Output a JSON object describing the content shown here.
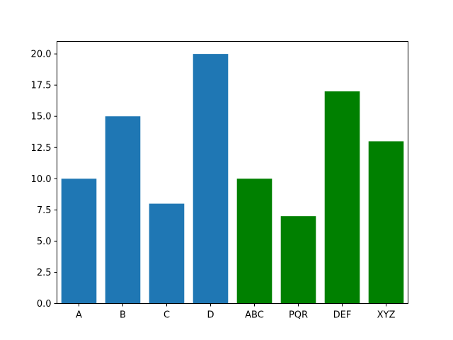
{
  "chart_data": {
    "type": "bar",
    "title": "",
    "xlabel": "",
    "ylabel": "",
    "ylim": [
      0,
      21
    ],
    "yticks": [
      0.0,
      2.5,
      5.0,
      7.5,
      10.0,
      12.5,
      15.0,
      17.5,
      20.0
    ],
    "ytick_labels": [
      "0.0",
      "2.5",
      "5.0",
      "7.5",
      "10.0",
      "12.5",
      "15.0",
      "17.5",
      "20.0"
    ],
    "grid": false,
    "categories": [
      "A",
      "B",
      "C",
      "D",
      "ABC",
      "PQR",
      "DEF",
      "XYZ"
    ],
    "series": [
      {
        "categories": [
          "A",
          "B",
          "C",
          "D"
        ],
        "x": [
          1,
          2,
          3,
          4
        ],
        "values": [
          10,
          15,
          8,
          20
        ],
        "color": "#1f77b4"
      },
      {
        "categories": [
          "ABC",
          "PQR",
          "DEF",
          "XYZ"
        ],
        "x": [
          5,
          6,
          7,
          8
        ],
        "values": [
          10,
          7,
          17,
          13
        ],
        "color": "#008000"
      }
    ]
  }
}
